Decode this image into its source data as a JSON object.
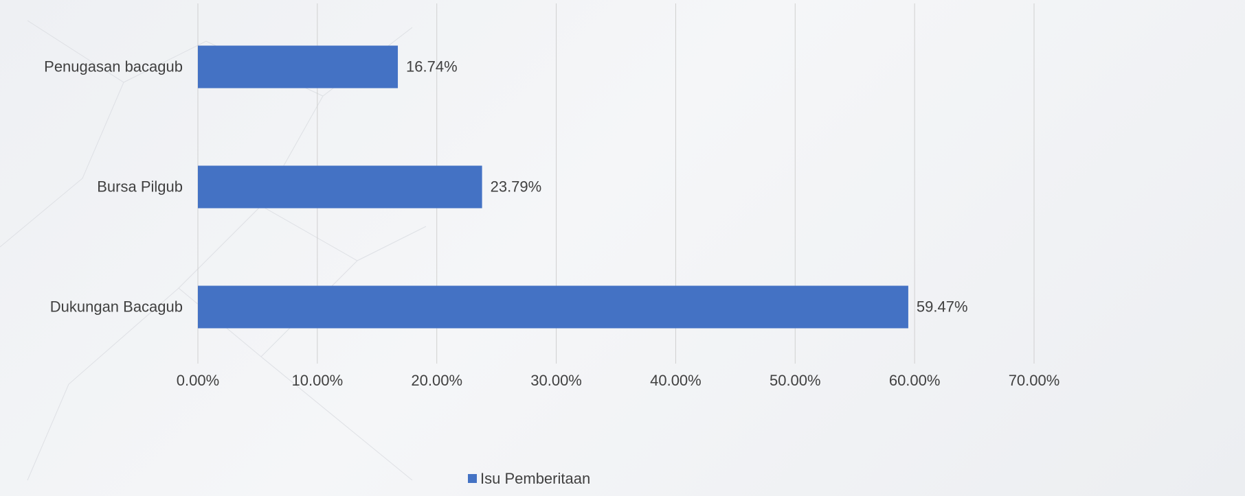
{
  "chart_data": {
    "type": "barh",
    "categories": [
      "Penugasan bacagub",
      "Bursa Pilgub",
      "Dukungan Bacagub"
    ],
    "series": [
      {
        "name": "Isu Pemberitaan",
        "color": "#4472c4",
        "values": [
          16.74,
          23.79,
          59.47
        ],
        "value_labels": [
          "16.74%",
          "23.79%",
          "59.47%"
        ]
      }
    ],
    "xlim": [
      0,
      70
    ],
    "xticks": [
      {
        "value": 0,
        "label": "0.00%"
      },
      {
        "value": 10,
        "label": "10.00%"
      },
      {
        "value": 20,
        "label": "20.00%"
      },
      {
        "value": 30,
        "label": "30.00%"
      },
      {
        "value": 40,
        "label": "40.00%"
      },
      {
        "value": 50,
        "label": "50.00%"
      },
      {
        "value": 60,
        "label": "60.00%"
      },
      {
        "value": 70,
        "label": "70.00%"
      }
    ],
    "grid": true,
    "legend": "bottom"
  }
}
